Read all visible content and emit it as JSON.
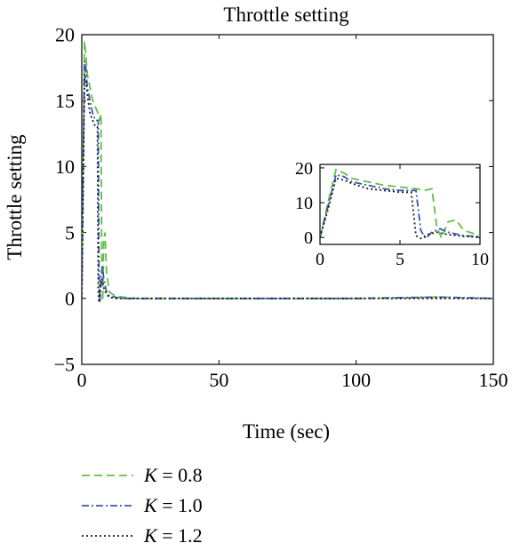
{
  "chart_data": {
    "type": "line",
    "title": "Throttle setting",
    "xlabel": "Time (sec)",
    "ylabel": "Throttle setting",
    "xlim": [
      0,
      150
    ],
    "ylim": [
      -5,
      20
    ],
    "xticks": [
      0,
      50,
      100,
      150
    ],
    "yticks": [
      -5,
      0,
      5,
      10,
      15,
      20
    ],
    "grid": false,
    "legend_position": "below",
    "series": [
      {
        "name": "K = 0.8",
        "symbol": "K",
        "value_text": "= 0.8",
        "color": "#5ec043",
        "dash": "dashed",
        "x": [
          0,
          0.5,
          1,
          1.5,
          2,
          3,
          4,
          5,
          6,
          6.5,
          7,
          7.3,
          7.6,
          8,
          8.5,
          9,
          10,
          12,
          15,
          20,
          50,
          100,
          130,
          150
        ],
        "y": [
          0,
          10,
          19.5,
          18.5,
          17,
          16,
          15,
          14.5,
          14,
          13.5,
          14,
          3,
          -0.2,
          4.5,
          5,
          2,
          0.5,
          0.2,
          0.1,
          0,
          0,
          0,
          0.1,
          0
        ]
      },
      {
        "name": "K = 1.0",
        "symbol": "K",
        "value_text": "= 1.0",
        "color": "#3b55b5",
        "dash": "dash-dot",
        "x": [
          0,
          0.5,
          1,
          1.5,
          2,
          3,
          4,
          5,
          6,
          6.3,
          6.6,
          7,
          7.5,
          8,
          9,
          10,
          12,
          15,
          20,
          50,
          100,
          130,
          150
        ],
        "y": [
          0,
          9,
          18,
          17.5,
          16,
          15,
          14,
          13.5,
          13.5,
          2,
          -0.3,
          1.5,
          2.5,
          1.5,
          0.5,
          0.2,
          0.1,
          0,
          0,
          0,
          0,
          0.1,
          0
        ]
      },
      {
        "name": "K = 1.2",
        "symbol": "K",
        "value_text": "= 1.2",
        "color": "#1a1a1a",
        "dash": "dotted",
        "x": [
          0,
          0.5,
          1,
          1.5,
          2,
          3,
          4,
          5,
          5.7,
          6,
          6.3,
          6.8,
          7.3,
          8,
          9,
          10,
          12,
          15,
          20,
          50,
          100,
          130,
          150
        ],
        "y": [
          0,
          8,
          17,
          16.5,
          15.5,
          14,
          13.5,
          13,
          13,
          0.5,
          -0.3,
          1,
          1.5,
          0.8,
          0.3,
          0.1,
          0,
          0,
          0,
          0,
          0,
          0,
          0
        ]
      }
    ],
    "inset": {
      "xlim": [
        0,
        10
      ],
      "ylim": [
        -2,
        21
      ],
      "xticks": [
        0,
        5,
        10
      ],
      "yticks": [
        0,
        10,
        20
      ]
    }
  }
}
